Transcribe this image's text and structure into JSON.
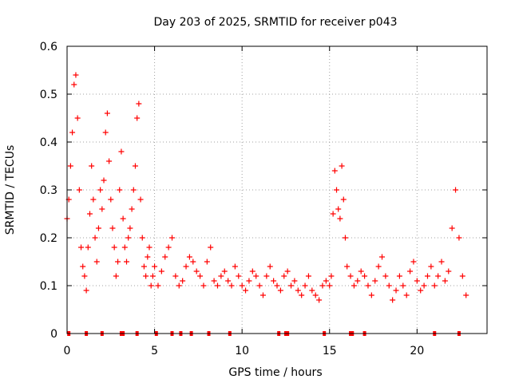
{
  "chart_data": {
    "type": "scatter",
    "title": "Day 203 of 2025, SRMTID for receiver p043",
    "xlabel": "GPS time / hours",
    "ylabel": "SRMTID / TECUs",
    "xlim": [
      0,
      24
    ],
    "ylim": [
      0,
      0.6
    ],
    "xticks": [
      0,
      5,
      10,
      15,
      20
    ],
    "xtick_labels": [
      "0",
      "5",
      "10",
      "15",
      "20"
    ],
    "yticks": [
      0,
      0.1,
      0.2,
      0.3,
      0.4,
      0.5,
      0.6
    ],
    "ytick_labels": [
      "0",
      "0.1",
      "0.2",
      "0.3",
      "0.4",
      "0.5",
      "0.6"
    ],
    "grid": true,
    "legend": "none",
    "marker": "plus",
    "color": "#ff0000",
    "series": [
      {
        "name": "SRMTID",
        "x": [
          0.0,
          0.1,
          0.2,
          0.3,
          0.4,
          0.5,
          0.6,
          0.7,
          0.8,
          0.9,
          1.0,
          1.1,
          1.2,
          1.3,
          1.4,
          1.5,
          1.6,
          1.7,
          1.8,
          1.9,
          2.0,
          2.1,
          2.2,
          2.3,
          2.4,
          2.5,
          2.6,
          2.7,
          2.8,
          2.9,
          3.0,
          3.1,
          3.2,
          3.3,
          3.4,
          3.5,
          3.6,
          3.7,
          3.8,
          3.9,
          4.0,
          4.1,
          4.2,
          4.3,
          4.4,
          4.5,
          4.6,
          4.7,
          4.8,
          4.9,
          5.0,
          5.2,
          5.4,
          5.6,
          5.8,
          6.0,
          6.2,
          6.4,
          6.6,
          6.8,
          7.0,
          7.2,
          7.4,
          7.6,
          7.8,
          8.0,
          8.2,
          8.4,
          8.6,
          8.8,
          9.0,
          9.2,
          9.4,
          9.6,
          9.8,
          10.0,
          10.2,
          10.4,
          10.6,
          10.8,
          11.0,
          11.2,
          11.4,
          11.6,
          11.8,
          12.0,
          12.2,
          12.4,
          12.6,
          12.8,
          13.0,
          13.2,
          13.4,
          13.6,
          13.8,
          14.0,
          14.2,
          14.4,
          14.6,
          14.8,
          15.0,
          15.1,
          15.2,
          15.3,
          15.4,
          15.5,
          15.6,
          15.7,
          15.8,
          15.9,
          16.0,
          16.2,
          16.4,
          16.6,
          16.8,
          17.0,
          17.2,
          17.4,
          17.6,
          17.8,
          18.0,
          18.2,
          18.4,
          18.6,
          18.8,
          19.0,
          19.2,
          19.4,
          19.6,
          19.8,
          20.0,
          20.2,
          20.4,
          20.6,
          20.8,
          21.0,
          21.2,
          21.4,
          21.6,
          21.8,
          22.0,
          22.2,
          22.4,
          22.6,
          22.8
        ],
        "y": [
          0.24,
          0.28,
          0.35,
          0.42,
          0.52,
          0.54,
          0.45,
          0.3,
          0.18,
          0.14,
          0.12,
          0.09,
          0.18,
          0.25,
          0.35,
          0.28,
          0.2,
          0.15,
          0.22,
          0.3,
          0.26,
          0.32,
          0.42,
          0.46,
          0.36,
          0.28,
          0.22,
          0.18,
          0.12,
          0.15,
          0.3,
          0.38,
          0.24,
          0.18,
          0.15,
          0.2,
          0.22,
          0.26,
          0.3,
          0.35,
          0.45,
          0.48,
          0.28,
          0.2,
          0.14,
          0.12,
          0.16,
          0.18,
          0.1,
          0.12,
          0.14,
          0.1,
          0.13,
          0.16,
          0.18,
          0.2,
          0.12,
          0.1,
          0.11,
          0.14,
          0.16,
          0.15,
          0.13,
          0.12,
          0.1,
          0.15,
          0.18,
          0.11,
          0.1,
          0.12,
          0.13,
          0.11,
          0.1,
          0.14,
          0.12,
          0.1,
          0.09,
          0.11,
          0.13,
          0.12,
          0.1,
          0.08,
          0.12,
          0.14,
          0.11,
          0.1,
          0.09,
          0.12,
          0.13,
          0.1,
          0.11,
          0.09,
          0.08,
          0.1,
          0.12,
          0.09,
          0.08,
          0.07,
          0.1,
          0.11,
          0.1,
          0.12,
          0.25,
          0.34,
          0.3,
          0.26,
          0.24,
          0.35,
          0.28,
          0.2,
          0.14,
          0.12,
          0.1,
          0.11,
          0.13,
          0.12,
          0.1,
          0.08,
          0.11,
          0.14,
          0.16,
          0.12,
          0.1,
          0.07,
          0.09,
          0.12,
          0.1,
          0.08,
          0.13,
          0.15,
          0.11,
          0.09,
          0.1,
          0.12,
          0.14,
          0.1,
          0.12,
          0.15,
          0.11,
          0.13,
          0.22,
          0.3,
          0.2,
          0.12,
          0.08
        ]
      }
    ],
    "zero_markers_x": [
      0.1,
      1.1,
      2.0,
      3.1,
      3.2,
      4.0,
      5.1,
      6.0,
      6.5,
      7.1,
      8.1,
      9.3,
      12.1,
      12.5,
      12.6,
      14.7,
      16.2,
      16.3,
      17.0,
      21.0,
      22.4
    ]
  }
}
